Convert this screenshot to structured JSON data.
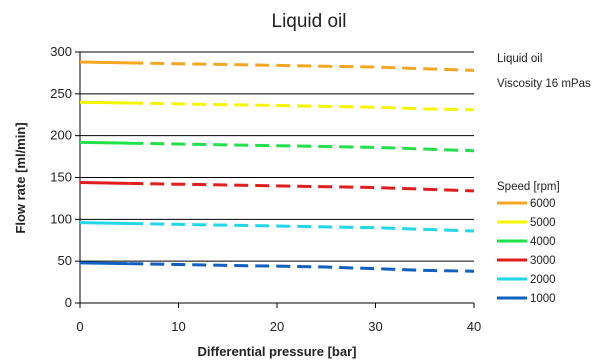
{
  "chart_data": {
    "type": "line",
    "title": "Liquid oil",
    "xlabel": "Differential pressure [bar]",
    "ylabel": "Flow rate [ml/min]",
    "xlim": [
      0,
      40
    ],
    "ylim": [
      0,
      300
    ],
    "x_ticks": [
      "0",
      "10",
      "20",
      "30",
      "40"
    ],
    "y_ticks": [
      "0",
      "50",
      "100",
      "150",
      "200",
      "250",
      "300"
    ],
    "grid": "horizontal",
    "annotation": [
      "Liquid oil",
      "Viscosity 16 mPas"
    ],
    "legend_title": "Speed [rpm]",
    "legend_position": "right",
    "x": [
      0,
      5,
      10,
      15,
      20,
      25,
      30,
      35,
      40
    ],
    "series": [
      {
        "name": "6000",
        "color": "#f5a623",
        "values": [
          288,
          287,
          286,
          285,
          284,
          283,
          282,
          280,
          278
        ]
      },
      {
        "name": "5000",
        "color": "#f5f500",
        "values": [
          240,
          239,
          238,
          237,
          236,
          235,
          234,
          232,
          231
        ]
      },
      {
        "name": "4000",
        "color": "#22e04a",
        "values": [
          192,
          191,
          190,
          189,
          188,
          187,
          186,
          184,
          182
        ]
      },
      {
        "name": "3000",
        "color": "#e01e1e",
        "values": [
          144,
          143,
          142,
          141,
          140,
          139,
          138,
          136,
          134
        ]
      },
      {
        "name": "2000",
        "color": "#22d8e8",
        "values": [
          96,
          95,
          94,
          93,
          92,
          91,
          90,
          88,
          86
        ]
      },
      {
        "name": "1000",
        "color": "#1060c0",
        "values": [
          48,
          47,
          46,
          45,
          44,
          43,
          41,
          39,
          38
        ]
      }
    ]
  }
}
